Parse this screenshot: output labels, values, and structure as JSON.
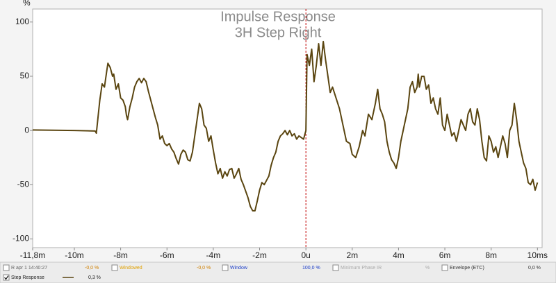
{
  "chart_data": {
    "type": "line",
    "title": "Impulse Response",
    "subtitle": "3H Step Right",
    "y_label": "%",
    "xlim": [
      -11.8,
      10.2
    ],
    "ylim": [
      -108,
      112
    ],
    "xticks": [
      {
        "value": -11.8,
        "label": "-11,8m"
      },
      {
        "value": -10,
        "label": "-10m"
      },
      {
        "value": -8,
        "label": "-8m"
      },
      {
        "value": -6,
        "label": "-6m"
      },
      {
        "value": -4,
        "label": "-4m"
      },
      {
        "value": -2,
        "label": "-2m"
      },
      {
        "value": 0,
        "label": "0u"
      },
      {
        "value": 2,
        "label": "2m"
      },
      {
        "value": 4,
        "label": "4m"
      },
      {
        "value": 6,
        "label": "6m"
      },
      {
        "value": 8,
        "label": "8m"
      },
      {
        "value": 10,
        "label": "10ms"
      }
    ],
    "yticks": [
      100,
      50,
      0,
      -50,
      -100
    ],
    "vline": {
      "x": 0,
      "color": "#c00000"
    },
    "x": [
      -11.8,
      -10,
      -9.1,
      -9.05,
      -8.9,
      -8.8,
      -8.7,
      -8.6,
      -8.55,
      -8.45,
      -8.35,
      -8.3,
      -8.2,
      -8.1,
      -8.0,
      -7.9,
      -7.8,
      -7.75,
      -7.7,
      -7.6,
      -7.5,
      -7.4,
      -7.3,
      -7.2,
      -7.1,
      -7.0,
      -6.9,
      -6.8,
      -6.7,
      -6.6,
      -6.5,
      -6.4,
      -6.3,
      -6.2,
      -6.1,
      -6.0,
      -5.9,
      -5.8,
      -5.7,
      -5.6,
      -5.5,
      -5.4,
      -5.3,
      -5.2,
      -5.1,
      -5.0,
      -4.9,
      -4.8,
      -4.7,
      -4.6,
      -4.5,
      -4.4,
      -4.3,
      -4.2,
      -4.1,
      -4.0,
      -3.9,
      -3.8,
      -3.7,
      -3.6,
      -3.5,
      -3.4,
      -3.3,
      -3.2,
      -3.1,
      -3.0,
      -2.9,
      -2.8,
      -2.7,
      -2.6,
      -2.5,
      -2.4,
      -2.3,
      -2.2,
      -2.1,
      -2.0,
      -1.9,
      -1.8,
      -1.7,
      -1.6,
      -1.5,
      -1.4,
      -1.3,
      -1.2,
      -1.1,
      -1.0,
      -0.9,
      -0.8,
      -0.7,
      -0.6,
      -0.5,
      -0.4,
      -0.3,
      -0.1,
      0,
      0.05,
      0.15,
      0.25,
      0.35,
      0.45,
      0.55,
      0.65,
      0.75,
      0.85,
      0.95,
      1.05,
      1.15,
      1.3,
      1.45,
      1.6,
      1.75,
      1.9,
      2.0,
      2.15,
      2.3,
      2.45,
      2.55,
      2.7,
      2.85,
      3.0,
      3.1,
      3.2,
      3.3,
      3.4,
      3.5,
      3.6,
      3.7,
      3.8,
      3.9,
      4.0,
      4.1,
      4.2,
      4.3,
      4.4,
      4.5,
      4.6,
      4.7,
      4.8,
      4.85,
      4.9,
      5.0,
      5.1,
      5.2,
      5.3,
      5.4,
      5.5,
      5.6,
      5.7,
      5.8,
      5.9,
      6.0,
      6.1,
      6.2,
      6.3,
      6.4,
      6.5,
      6.6,
      6.7,
      6.8,
      6.9,
      7.0,
      7.1,
      7.2,
      7.3,
      7.4,
      7.5,
      7.6,
      7.7,
      7.8,
      7.9,
      8.0,
      8.1,
      8.2,
      8.3,
      8.4,
      8.5,
      8.6,
      8.7,
      8.8,
      8.9,
      9.0,
      9.1,
      9.2,
      9.3,
      9.4,
      9.5,
      9.6,
      9.7,
      9.8,
      9.9,
      10.0
    ],
    "series": [
      {
        "name": "Step Response",
        "color": "#5a4510",
        "values": [
          0.5,
          0,
          -0.5,
          -2.5,
          28,
          43,
          40,
          55,
          62,
          58,
          50,
          52,
          38,
          43,
          30,
          28,
          22,
          14,
          10,
          22,
          30,
          40,
          45,
          48,
          44,
          48,
          45,
          36,
          28,
          20,
          12,
          5,
          -8,
          -5,
          -12,
          -14,
          -12,
          -17,
          -20,
          -26,
          -31,
          -22,
          -18,
          -20,
          -27,
          -28,
          -20,
          -5,
          10,
          25,
          20,
          5,
          2,
          -10,
          -5,
          -18,
          -30,
          -40,
          -35,
          -44,
          -38,
          -42,
          -36,
          -35,
          -44,
          -40,
          -35,
          -45,
          -50,
          -56,
          -62,
          -70,
          -74,
          -74,
          -65,
          -55,
          -48,
          -50,
          -46,
          -42,
          -32,
          -25,
          -20,
          -10,
          -5,
          -3,
          0,
          -4,
          0,
          -5,
          -3,
          -8,
          -5,
          -8,
          0,
          70,
          60,
          75,
          45,
          60,
          80,
          60,
          82,
          65,
          50,
          35,
          40,
          30,
          20,
          5,
          -10,
          -12,
          -22,
          -25,
          -15,
          0,
          -5,
          15,
          10,
          25,
          38,
          20,
          15,
          8,
          -10,
          -20,
          -27,
          -30,
          -35,
          -25,
          -10,
          0,
          10,
          20,
          40,
          45,
          35,
          40,
          52,
          40,
          50,
          50,
          38,
          42,
          25,
          30,
          20,
          15,
          30,
          5,
          0,
          15,
          5,
          -5,
          -2,
          -10,
          0,
          10,
          5,
          0,
          15,
          20,
          8,
          5,
          20,
          10,
          -10,
          -25,
          -28,
          -5,
          -10,
          -20,
          -15,
          -25,
          -15,
          -5,
          -12,
          -25,
          0,
          5,
          25,
          10,
          -10,
          -20,
          -30,
          -35,
          -48,
          -50,
          -45,
          -55,
          -48
        ]
      }
    ]
  },
  "legend_panel": {
    "items": [
      {
        "label": "R apr 1 14:40:27",
        "value": "-0,0 %",
        "color": "#666666",
        "value_color": "#d08000",
        "checked": false
      },
      {
        "label": "Windowed",
        "value": "-0,0 %",
        "color": "#e0a000",
        "value_color": "#d08000",
        "checked": false
      },
      {
        "label": "Window",
        "value": "100,0 %",
        "color": "#1a3cc8",
        "value_color": "#1a3cc8",
        "checked": false
      },
      {
        "label": "Minimum Phase IR",
        "value": "%",
        "color": "#aaaaaa",
        "value_color": "#aaaaaa",
        "checked": false
      },
      {
        "label": "Envelope (ETC)",
        "value": "0,0 %",
        "color": "#333333",
        "value_color": "#333333",
        "checked": false
      },
      {
        "label": "Step Response",
        "value": "0,3 %",
        "color": "#222222",
        "value_color": "#222222",
        "checked": true
      }
    ]
  }
}
